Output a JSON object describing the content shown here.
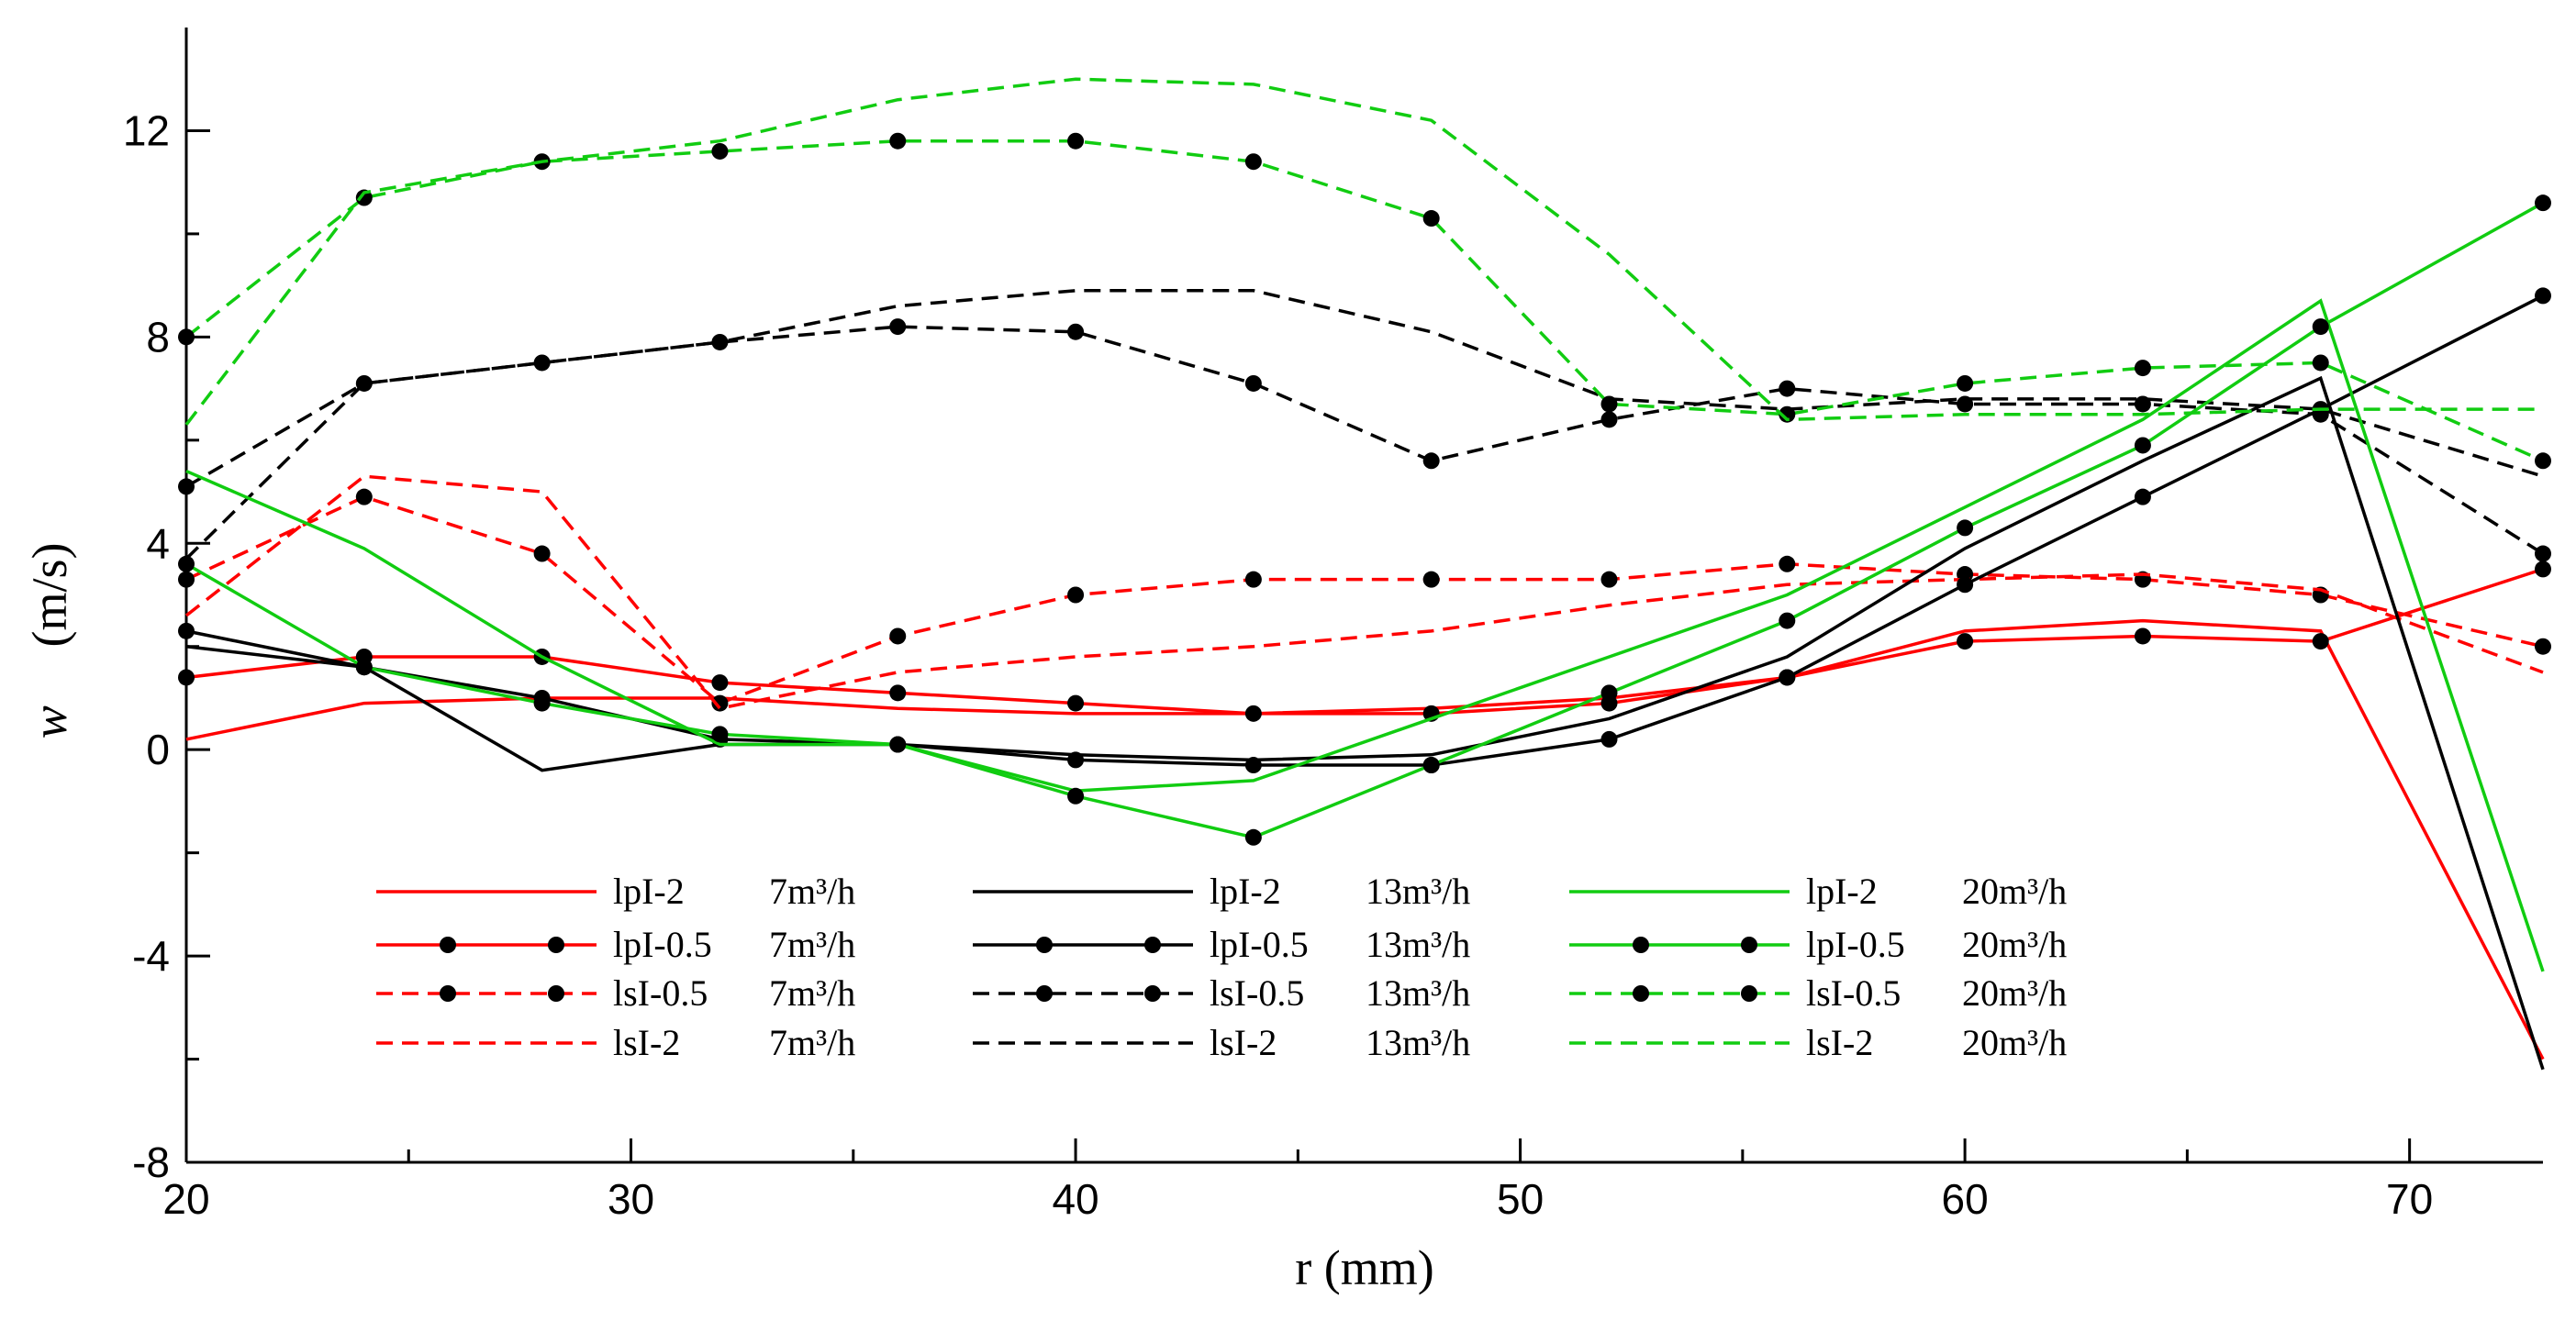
{
  "chart_data": {
    "type": "line",
    "title": "",
    "xlabel": "r  (mm)",
    "ylabel_symbol": "w",
    "ylabel_unit": "(m/s)",
    "xlim": [
      20,
      73
    ],
    "ylim": [
      -8,
      14
    ],
    "xticks": [
      20,
      30,
      40,
      50,
      60,
      70
    ],
    "xtick_labels": [
      "20",
      "30",
      "40",
      "50",
      "60",
      "70"
    ],
    "yticks": [
      -8,
      -4,
      0,
      4,
      8,
      12
    ],
    "ytick_labels": [
      "-8",
      "-4",
      "0",
      "4",
      "8",
      "12"
    ],
    "x": [
      20,
      24,
      28,
      32,
      36,
      40,
      44,
      48,
      52,
      56,
      60,
      64,
      68,
      73
    ],
    "legend_position": "bottom-center",
    "series": [
      {
        "name": "lpI-2",
        "flow": "7m³/h",
        "color": "#ff0000",
        "dash": "solid",
        "markers": false,
        "values": [
          0.2,
          0.9,
          1.0,
          1.0,
          0.8,
          0.7,
          0.7,
          0.8,
          1.0,
          1.4,
          2.3,
          2.5,
          2.3,
          -6.0
        ]
      },
      {
        "name": "lpI-0.5",
        "flow": "7m³/h",
        "color": "#ff0000",
        "dash": "solid",
        "markers": true,
        "values": [
          1.4,
          1.8,
          1.8,
          1.3,
          1.1,
          0.9,
          0.7,
          0.7,
          0.9,
          1.4,
          2.1,
          2.2,
          2.1,
          3.5
        ]
      },
      {
        "name": "lsI-0.5",
        "flow": "7m³/h",
        "color": "#ff0000",
        "dash": "dashed",
        "markers": true,
        "values": [
          3.3,
          4.9,
          3.8,
          0.9,
          2.2,
          3.0,
          3.3,
          3.3,
          3.3,
          3.6,
          3.4,
          3.3,
          3.0,
          2.0
        ]
      },
      {
        "name": "lsI-2",
        "flow": "7m³/h",
        "color": "#ff0000",
        "dash": "dashed",
        "markers": false,
        "values": [
          2.6,
          5.3,
          5.0,
          0.8,
          1.5,
          1.8,
          2.0,
          2.3,
          2.8,
          3.2,
          3.3,
          3.4,
          3.1,
          1.5
        ]
      },
      {
        "name": "lpI-2",
        "flow": "13m³/h",
        "color": "#000000",
        "dash": "solid",
        "markers": false,
        "values": [
          2.0,
          1.6,
          -0.4,
          0.1,
          0.1,
          -0.1,
          -0.2,
          -0.1,
          0.6,
          1.8,
          3.9,
          5.6,
          7.2,
          -6.2
        ]
      },
      {
        "name": "lpI-0.5",
        "flow": "13m³/h",
        "color": "#000000",
        "dash": "solid",
        "markers": true,
        "values": [
          2.3,
          1.6,
          1.0,
          0.2,
          0.1,
          -0.2,
          -0.3,
          -0.3,
          0.2,
          1.4,
          3.2,
          4.9,
          6.6,
          8.8
        ]
      },
      {
        "name": "lsI-0.5",
        "flow": "13m³/h",
        "color": "#000000",
        "dash": "dashed",
        "markers": true,
        "values": [
          5.1,
          7.1,
          7.5,
          7.9,
          8.2,
          8.1,
          7.1,
          5.6,
          6.4,
          7.0,
          6.7,
          6.7,
          6.5,
          3.8
        ]
      },
      {
        "name": "lsI-2",
        "flow": "13m³/h",
        "color": "#000000",
        "dash": "dashed",
        "markers": false,
        "values": [
          3.7,
          7.1,
          7.5,
          7.9,
          8.6,
          8.9,
          8.9,
          8.1,
          6.8,
          6.6,
          6.8,
          6.8,
          6.6,
          5.3
        ]
      },
      {
        "name": "lpI-2",
        "flow": "20m³/h",
        "color": "#11cc11",
        "dash": "solid",
        "markers": false,
        "values": [
          5.4,
          3.9,
          1.8,
          0.1,
          0.1,
          -0.8,
          -0.6,
          0.6,
          1.8,
          3.0,
          4.7,
          6.4,
          8.7,
          -4.3
        ]
      },
      {
        "name": "lpI-0.5",
        "flow": "20m³/h",
        "color": "#11cc11",
        "dash": "solid",
        "markers": true,
        "values": [
          3.6,
          1.6,
          0.9,
          0.3,
          0.1,
          -0.9,
          -1.7,
          -0.3,
          1.1,
          2.5,
          4.3,
          5.9,
          8.2,
          10.6
        ]
      },
      {
        "name": "lsI-0.5",
        "flow": "20m³/h",
        "color": "#11cc11",
        "dash": "dashed",
        "markers": true,
        "values": [
          8.0,
          10.7,
          11.4,
          11.6,
          11.8,
          11.8,
          11.4,
          10.3,
          6.7,
          6.5,
          7.1,
          7.4,
          7.5,
          5.6
        ]
      },
      {
        "name": "lsI-2",
        "flow": "20m³/h",
        "color": "#11cc11",
        "dash": "dashed",
        "markers": false,
        "values": [
          6.3,
          10.8,
          11.4,
          11.8,
          12.6,
          13.0,
          12.9,
          12.2,
          9.6,
          6.4,
          6.5,
          6.5,
          6.6,
          6.6
        ]
      }
    ]
  }
}
